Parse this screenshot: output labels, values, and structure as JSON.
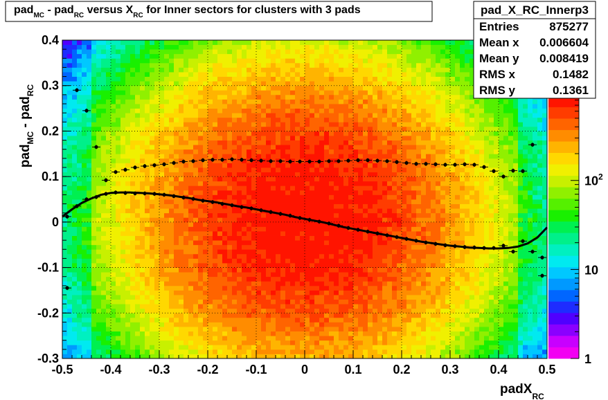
{
  "chart_data": {
    "type": "heatmap",
    "title_parts": {
      "a": "pad",
      "a_sub": "MC",
      "b": " - pad",
      "b_sub": "RC",
      "c": " versus X",
      "c_sub": "RC",
      "d": " for Inner sectors for clusters with 3 pads"
    },
    "xlabel": "padX",
    "xlabel_sub": "RC",
    "ylabel_parts": {
      "a": "pad",
      "a_sub": "MC",
      "b": " - pad",
      "b_sub": "RC"
    },
    "xlim": [
      -0.5,
      0.5
    ],
    "ylim": [
      -0.3,
      0.4
    ],
    "xticks": [
      "-0.5",
      "-0.4",
      "-0.3",
      "-0.2",
      "-0.1",
      "0",
      "0.1",
      "0.2",
      "0.3",
      "0.4",
      "0.5"
    ],
    "yticks": [
      "-0.3",
      "-0.2",
      "-0.1",
      "0",
      "0.1",
      "0.2",
      "0.3",
      "0.4"
    ],
    "grid": true,
    "colorbar": {
      "scale": "log",
      "labels": [
        {
          "value": 1,
          "text": "1"
        },
        {
          "value": 10,
          "text": "10"
        },
        {
          "value": 100,
          "base": "10",
          "exp": "2"
        }
      ],
      "zmax": 900
    },
    "colors": [
      "#f200f2",
      "#c800ff",
      "#8a00ff",
      "#5000ff",
      "#1e2cff",
      "#0066ff",
      "#0099ff",
      "#00c8ff",
      "#00eaf0",
      "#00f0c0",
      "#00f08a",
      "#00f050",
      "#19f000",
      "#55f000",
      "#90f000",
      "#c8f000",
      "#f0f000",
      "#ffd800",
      "#ffb400",
      "#ff8c00",
      "#ff6400",
      "#ff3c00",
      "#ff1400"
    ],
    "stats": {
      "name": "pad_X_RC_Innerp3",
      "rows": [
        {
          "label": "Entries",
          "value": "875277"
        },
        {
          "label": "Mean x",
          "value": "0.006604"
        },
        {
          "label": "Mean y",
          "value": "0.008419"
        },
        {
          "label": "RMS x",
          "value": "0.1482"
        },
        {
          "label": "RMS y",
          "value": "0.1361"
        }
      ]
    },
    "series": [
      {
        "name": "",
        "style": "points_with_errors",
        "x": [
          -0.49,
          -0.47,
          -0.45,
          -0.43,
          -0.41,
          -0.39,
          -0.37,
          -0.35,
          -0.33,
          -0.31,
          -0.29,
          -0.27,
          -0.25,
          -0.23,
          -0.21,
          -0.19,
          -0.17,
          -0.15,
          -0.13,
          -0.11,
          -0.09,
          -0.07,
          -0.05,
          -0.03,
          -0.01,
          0.01,
          0.03,
          0.05,
          0.07,
          0.09,
          0.11,
          0.13,
          0.15,
          0.17,
          0.19,
          0.21,
          0.23,
          0.25,
          0.27,
          0.29,
          0.31,
          0.33,
          0.35,
          0.37,
          0.39,
          0.41,
          0.43,
          0.45,
          0.47,
          0.49
        ],
        "y": [
          -0.145,
          0.29,
          0.245,
          0.165,
          0.092,
          0.11,
          0.115,
          0.12,
          0.123,
          0.125,
          0.127,
          0.13,
          0.133,
          0.134,
          0.136,
          0.137,
          0.137,
          0.138,
          0.137,
          0.136,
          0.135,
          0.134,
          0.134,
          0.133,
          0.133,
          0.133,
          0.133,
          0.134,
          0.134,
          0.135,
          0.136,
          0.136,
          0.135,
          0.134,
          0.132,
          0.13,
          0.128,
          0.128,
          0.127,
          0.126,
          0.126,
          0.127,
          0.126,
          0.121,
          0.112,
          0.1,
          0.113,
          0.112,
          0.17,
          -0.118
        ]
      },
      {
        "name": "",
        "style": "points_with_errors",
        "x": [
          -0.49,
          -0.47,
          -0.45,
          -0.43,
          -0.41,
          -0.39,
          -0.37,
          -0.35,
          -0.33,
          -0.31,
          -0.29,
          -0.27,
          -0.25,
          -0.23,
          -0.21,
          -0.19,
          -0.17,
          -0.15,
          -0.13,
          -0.11,
          -0.09,
          -0.07,
          -0.05,
          -0.03,
          -0.01,
          0.01,
          0.03,
          0.05,
          0.07,
          0.09,
          0.11,
          0.13,
          0.15,
          0.17,
          0.19,
          0.21,
          0.23,
          0.25,
          0.27,
          0.29,
          0.31,
          0.33,
          0.35,
          0.37,
          0.39,
          0.41,
          0.43,
          0.45,
          0.47,
          0.49
        ],
        "y": [
          0.012,
          0.035,
          0.05,
          0.055,
          0.062,
          0.065,
          0.064,
          0.063,
          0.063,
          0.062,
          0.06,
          0.057,
          0.054,
          0.051,
          0.047,
          0.044,
          0.04,
          0.037,
          0.033,
          0.03,
          0.026,
          0.022,
          0.018,
          0.014,
          0.009,
          0.005,
          0.001,
          -0.003,
          -0.008,
          -0.013,
          -0.017,
          -0.021,
          -0.025,
          -0.029,
          -0.033,
          -0.037,
          -0.041,
          -0.045,
          -0.048,
          -0.051,
          -0.053,
          -0.055,
          -0.056,
          -0.057,
          -0.057,
          -0.052,
          -0.065,
          -0.042,
          -0.065,
          -0.078
        ]
      },
      {
        "name": "",
        "style": "smooth_line",
        "x": [
          -0.5,
          -0.48,
          -0.46,
          -0.44,
          -0.42,
          -0.4,
          -0.38,
          -0.36,
          -0.34,
          -0.32,
          -0.3,
          -0.28,
          -0.26,
          -0.24,
          -0.22,
          -0.2,
          -0.18,
          -0.16,
          -0.14,
          -0.12,
          -0.1,
          -0.08,
          -0.06,
          -0.04,
          -0.02,
          0.0,
          0.02,
          0.04,
          0.06,
          0.08,
          0.1,
          0.12,
          0.14,
          0.16,
          0.18,
          0.2,
          0.22,
          0.24,
          0.26,
          0.28,
          0.3,
          0.32,
          0.34,
          0.36,
          0.38,
          0.4,
          0.42,
          0.44,
          0.46,
          0.48,
          0.5
        ],
        "y": [
          0.012,
          0.028,
          0.042,
          0.052,
          0.06,
          0.064,
          0.065,
          0.065,
          0.064,
          0.063,
          0.061,
          0.059,
          0.056,
          0.053,
          0.049,
          0.046,
          0.043,
          0.039,
          0.035,
          0.032,
          0.028,
          0.024,
          0.02,
          0.016,
          0.011,
          0.007,
          0.003,
          -0.001,
          -0.006,
          -0.011,
          -0.015,
          -0.019,
          -0.023,
          -0.027,
          -0.031,
          -0.035,
          -0.039,
          -0.043,
          -0.046,
          -0.049,
          -0.052,
          -0.054,
          -0.056,
          -0.057,
          -0.058,
          -0.058,
          -0.057,
          -0.054,
          -0.047,
          -0.034,
          -0.012
        ]
      }
    ]
  }
}
